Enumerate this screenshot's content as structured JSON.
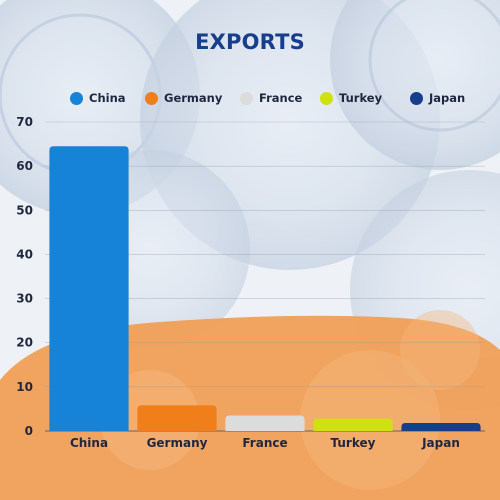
{
  "chart_data": {
    "type": "bar",
    "title": "EXPORTS",
    "categories": [
      "China",
      "Germany",
      "France",
      "Turkey",
      "Japan"
    ],
    "values": [
      64.5,
      5.8,
      3.5,
      2.8,
      1.8
    ],
    "colors": [
      "#1683d8",
      "#f07e1a",
      "#dcdcdc",
      "#cfe10f",
      "#173e8c"
    ],
    "legend": [
      "China",
      "Germany",
      "France",
      "Turkey",
      "Japan"
    ],
    "legend_position": "top",
    "ylim": [
      0,
      70
    ],
    "yticks": [
      0,
      10,
      20,
      30,
      40,
      50,
      60,
      70
    ],
    "grid": true,
    "xlabel": "",
    "ylabel": ""
  }
}
